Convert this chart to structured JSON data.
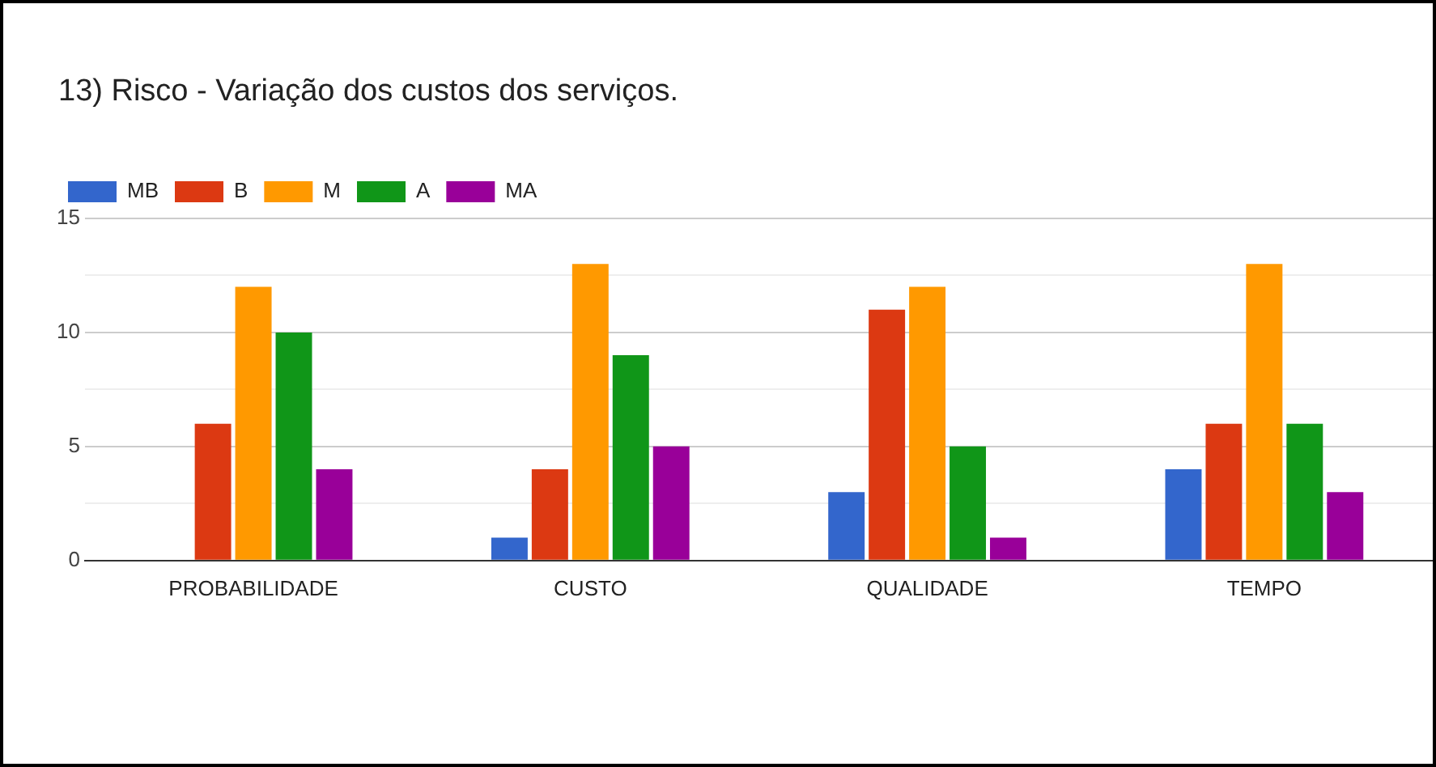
{
  "chart_data": {
    "type": "bar",
    "title": "13) Risco - Variação dos custos dos serviços.",
    "categories": [
      "PROBABILIDADE",
      "CUSTO",
      "QUALIDADE",
      "TEMPO"
    ],
    "series": [
      {
        "name": "MB",
        "color": "#3366cc",
        "values": [
          0,
          1,
          3,
          4
        ]
      },
      {
        "name": "B",
        "color": "#dc3912",
        "values": [
          6,
          4,
          11,
          6
        ]
      },
      {
        "name": "M",
        "color": "#ff9900",
        "values": [
          12,
          13,
          12,
          13
        ]
      },
      {
        "name": "A",
        "color": "#109618",
        "values": [
          10,
          9,
          5,
          6
        ]
      },
      {
        "name": "MA",
        "color": "#990099",
        "values": [
          4,
          5,
          1,
          3
        ]
      }
    ],
    "ylim": [
      0,
      15
    ],
    "yticks": [
      0,
      {
        "value": 2.5,
        "label": null
      },
      5,
      {
        "value": 7.5,
        "label": null
      },
      10,
      {
        "value": 12.5,
        "label": null
      },
      15
    ],
    "grid": "y",
    "legend": "top left"
  }
}
